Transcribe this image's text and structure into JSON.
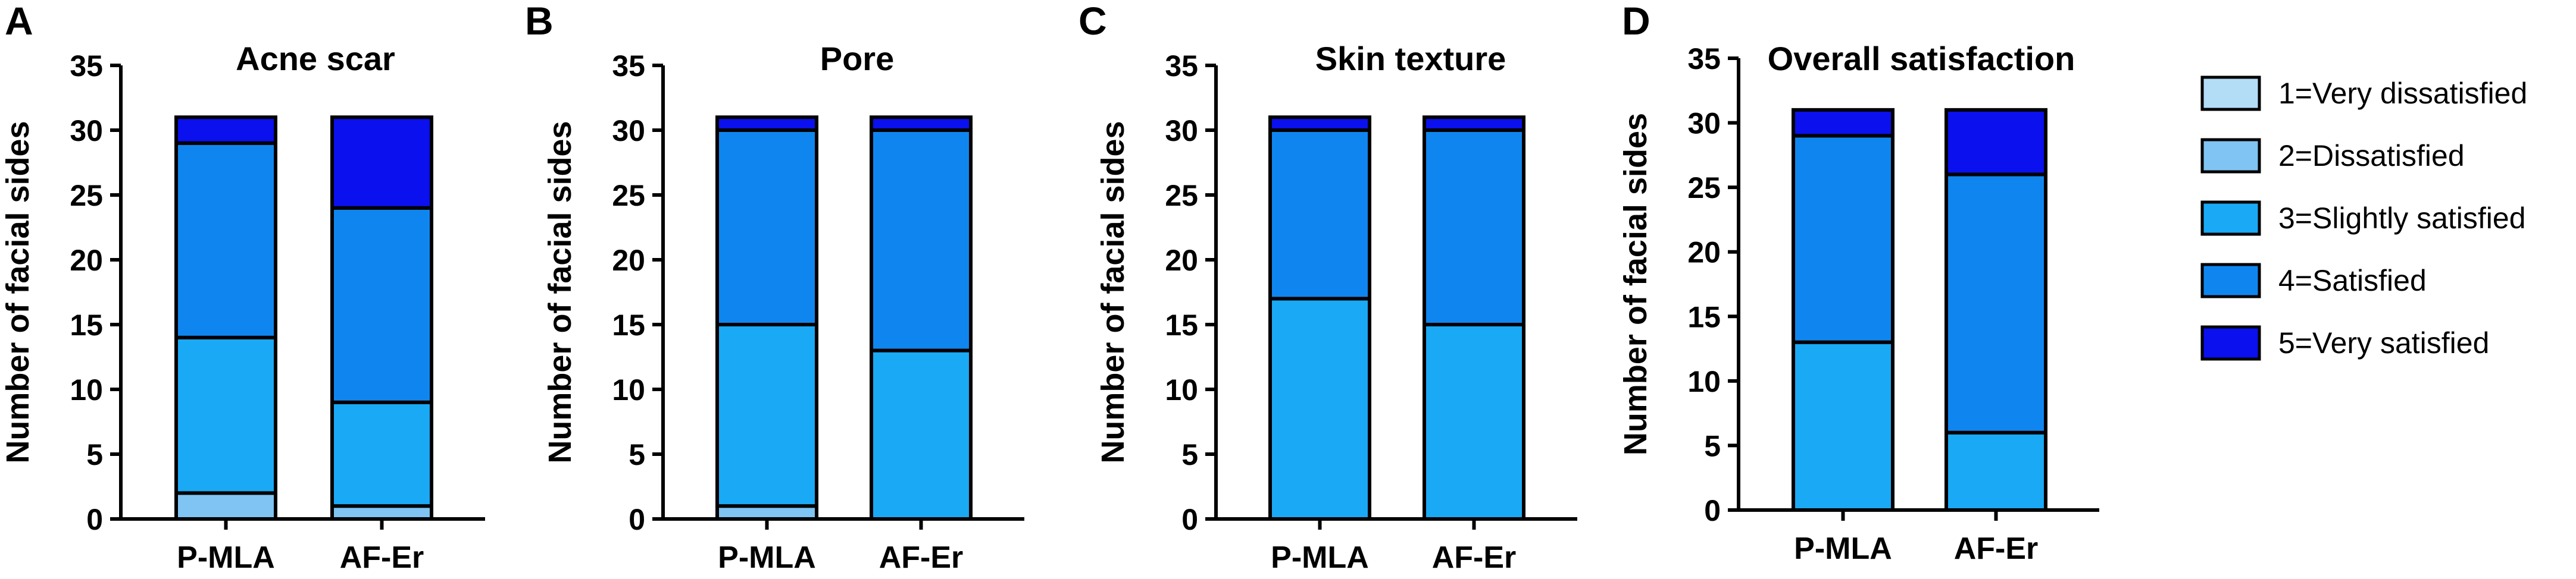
{
  "legend": {
    "position": "right",
    "items": [
      {
        "label": "1=Very dissatisfied",
        "color": "#b3dcf7"
      },
      {
        "label": "2=Dissatisfied",
        "color": "#7fc4f2"
      },
      {
        "label": "3=Slightly satisfied",
        "color": "#1aa9f5"
      },
      {
        "label": "4=Satisfied",
        "color": "#0f86ef"
      },
      {
        "label": "5=Very satisfied",
        "color": "#0a10ee"
      }
    ]
  },
  "chart_data": [
    {
      "type": "bar",
      "stacked": true,
      "panel": "A",
      "title": "Acne scar",
      "ylabel": "Number of facial sides",
      "xlabel": "",
      "ylim": [
        0,
        35
      ],
      "yticks": [
        0,
        5,
        10,
        15,
        20,
        25,
        30,
        35
      ],
      "categories": [
        "P-MLA",
        "AF-Er"
      ],
      "series": [
        {
          "name": "1=Very dissatisfied",
          "values": [
            0,
            0
          ]
        },
        {
          "name": "2=Dissatisfied",
          "values": [
            2,
            1
          ]
        },
        {
          "name": "3=Slightly satisfied",
          "values": [
            12,
            8
          ]
        },
        {
          "name": "4=Satisfied",
          "values": [
            15,
            15
          ]
        },
        {
          "name": "5=Very satisfied",
          "values": [
            2,
            7
          ]
        }
      ]
    },
    {
      "type": "bar",
      "stacked": true,
      "panel": "B",
      "title": "Pore",
      "ylabel": "Number of facial sides",
      "xlabel": "",
      "ylim": [
        0,
        35
      ],
      "yticks": [
        0,
        5,
        10,
        15,
        20,
        25,
        30,
        35
      ],
      "categories": [
        "P-MLA",
        "AF-Er"
      ],
      "series": [
        {
          "name": "1=Very dissatisfied",
          "values": [
            0,
            0
          ]
        },
        {
          "name": "2=Dissatisfied",
          "values": [
            1,
            0
          ]
        },
        {
          "name": "3=Slightly satisfied",
          "values": [
            14,
            13
          ]
        },
        {
          "name": "4=Satisfied",
          "values": [
            15,
            17
          ]
        },
        {
          "name": "5=Very satisfied",
          "values": [
            1,
            1
          ]
        }
      ]
    },
    {
      "type": "bar",
      "stacked": true,
      "panel": "C",
      "title": "Skin texture",
      "ylabel": "Number of facial sides",
      "xlabel": "",
      "ylim": [
        0,
        35
      ],
      "yticks": [
        0,
        5,
        10,
        15,
        20,
        25,
        30,
        35
      ],
      "categories": [
        "P-MLA",
        "AF-Er"
      ],
      "series": [
        {
          "name": "1=Very dissatisfied",
          "values": [
            0,
            0
          ]
        },
        {
          "name": "2=Dissatisfied",
          "values": [
            0,
            0
          ]
        },
        {
          "name": "3=Slightly satisfied",
          "values": [
            17,
            15
          ]
        },
        {
          "name": "4=Satisfied",
          "values": [
            13,
            15
          ]
        },
        {
          "name": "5=Very satisfied",
          "values": [
            1,
            1
          ]
        }
      ]
    },
    {
      "type": "bar",
      "stacked": true,
      "panel": "D",
      "title": "Overall satisfaction",
      "ylabel": "Number of facial sides",
      "xlabel": "",
      "ylim": [
        0,
        35
      ],
      "yticks": [
        0,
        5,
        10,
        15,
        20,
        25,
        30,
        35
      ],
      "categories": [
        "P-MLA",
        "AF-Er"
      ],
      "series": [
        {
          "name": "1=Very dissatisfied",
          "values": [
            0,
            0
          ]
        },
        {
          "name": "2=Dissatisfied",
          "values": [
            0,
            0
          ]
        },
        {
          "name": "3=Slightly satisfied",
          "values": [
            13,
            6
          ]
        },
        {
          "name": "4=Satisfied",
          "values": [
            16,
            20
          ]
        },
        {
          "name": "5=Very satisfied",
          "values": [
            2,
            5
          ]
        }
      ]
    }
  ]
}
